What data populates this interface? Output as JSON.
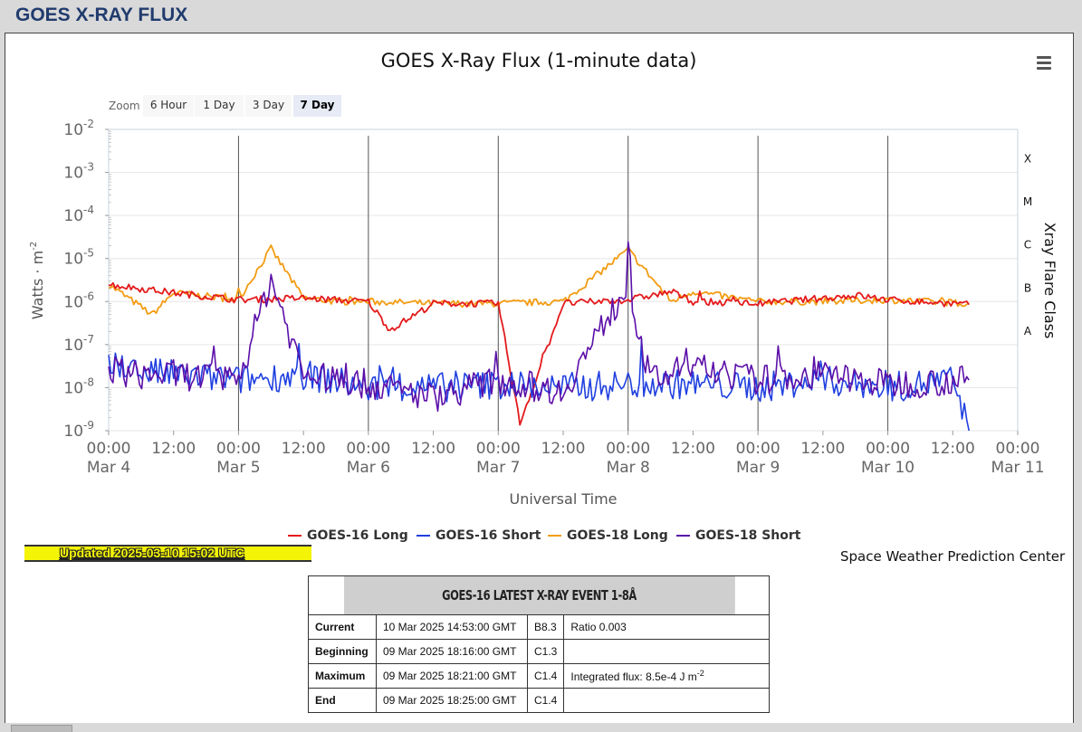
{
  "header": {
    "title": "GOES X-RAY FLUX"
  },
  "chart": {
    "title": "GOES X-Ray Flux (1-minute data)",
    "zoom_label": "Zoom",
    "zoom_buttons": [
      {
        "label": "6 Hour",
        "active": false
      },
      {
        "label": "1 Day",
        "active": false
      },
      {
        "label": "3 Day",
        "active": false
      },
      {
        "label": "7 Day",
        "active": true
      }
    ],
    "ylabel": "Watts · m",
    "ylabel_exp": "-2",
    "right_label": "Xray Flare Class",
    "xlabel": "Universal Time",
    "flare_classes": [
      "X",
      "M",
      "C",
      "B",
      "A"
    ],
    "y_ticks": [
      "-2",
      "-3",
      "-4",
      "-5",
      "-6",
      "-7",
      "-8",
      "-9"
    ],
    "x_ticks": [
      {
        "time": "00:00",
        "date": "Mar 4"
      },
      {
        "time": "12:00",
        "date": ""
      },
      {
        "time": "00:00",
        "date": "Mar 5"
      },
      {
        "time": "12:00",
        "date": ""
      },
      {
        "time": "00:00",
        "date": "Mar 6"
      },
      {
        "time": "12:00",
        "date": ""
      },
      {
        "time": "00:00",
        "date": "Mar 7"
      },
      {
        "time": "12:00",
        "date": ""
      },
      {
        "time": "00:00",
        "date": "Mar 8"
      },
      {
        "time": "12:00",
        "date": ""
      },
      {
        "time": "00:00",
        "date": "Mar 9"
      },
      {
        "time": "12:00",
        "date": ""
      },
      {
        "time": "00:00",
        "date": "Mar 10"
      },
      {
        "time": "12:00",
        "date": ""
      },
      {
        "time": "00:00",
        "date": "Mar 11"
      }
    ]
  },
  "chart_data": {
    "type": "line",
    "title": "GOES X-Ray Flux (1-minute data)",
    "xlabel": "Universal Time",
    "ylabel": "Watts · m-2",
    "yscale": "log",
    "ylim": [
      1e-09,
      0.01
    ],
    "xlim": [
      "2025-03-04 00:00",
      "2025-03-11 00:00"
    ],
    "grid": true,
    "legend_position": "bottom",
    "series": [
      {
        "name": "GOES-16 Long",
        "color": "#e41a1c",
        "x": [
          "2025-03-04 00:00",
          "2025-03-04 12:00",
          "2025-03-05 00:00",
          "2025-03-05 12:00",
          "2025-03-06 00:00",
          "2025-03-06 04:00",
          "2025-03-06 12:00",
          "2025-03-07 00:00",
          "2025-03-07 04:00",
          "2025-03-07 12:00",
          "2025-03-08 00:00",
          "2025-03-08 08:00",
          "2025-03-08 12:00",
          "2025-03-09 00:00",
          "2025-03-09 18:21",
          "2025-03-10 00:00",
          "2025-03-10 15:00"
        ],
        "values": [
          2.5e-06,
          1.6e-06,
          1.1e-06,
          1.2e-06,
          1e-06,
          2.2e-07,
          9e-07,
          9e-07,
          1.5e-09,
          9e-07,
          1.1e-06,
          1.7e-06,
          1e-06,
          9e-07,
          1.4e-06,
          1.1e-06,
          8.5e-07
        ]
      },
      {
        "name": "GOES-16 Short",
        "color": "#1f3fe0",
        "x": [
          "2025-03-04 00:00",
          "2025-03-04 12:00",
          "2025-03-05 00:00",
          "2025-03-05 12:00",
          "2025-03-06 00:00",
          "2025-03-06 12:00",
          "2025-03-07 00:00",
          "2025-03-07 12:00",
          "2025-03-08 00:00",
          "2025-03-08 12:00",
          "2025-03-09 00:00",
          "2025-03-09 12:00",
          "2025-03-10 00:00",
          "2025-03-10 12:00",
          "2025-03-10 15:00"
        ],
        "values": [
          3e-08,
          2e-08,
          1.5e-08,
          2e-08,
          1e-08,
          1e-08,
          1.2e-08,
          1e-08,
          1.2e-08,
          1.2e-08,
          1e-08,
          1.5e-08,
          1e-08,
          1.5e-08,
          1e-09
        ]
      },
      {
        "name": "GOES-18 Long",
        "color": "#f39c12",
        "x": [
          "2025-03-04 00:00",
          "2025-03-04 08:00",
          "2025-03-04 12:00",
          "2025-03-05 00:00",
          "2025-03-05 06:00",
          "2025-03-05 12:00",
          "2025-03-05 18:00",
          "2025-03-06 00:00",
          "2025-03-06 12:00",
          "2025-03-07 00:00",
          "2025-03-07 12:00",
          "2025-03-08 00:00",
          "2025-03-08 08:00",
          "2025-03-08 12:00",
          "2025-03-09 00:00",
          "2025-03-09 12:00",
          "2025-03-10 00:00",
          "2025-03-10 15:00"
        ],
        "values": [
          2.5e-06,
          5e-07,
          1.6e-06,
          1.1e-06,
          1.7e-05,
          1.2e-06,
          1e-06,
          1e-06,
          9e-07,
          9e-07,
          1e-06,
          1.6e-05,
          1e-06,
          1.7e-06,
          1e-06,
          1e-06,
          1.1e-06,
          9e-07
        ]
      },
      {
        "name": "GOES-18 Short",
        "color": "#5b0fa8",
        "x": [
          "2025-03-04 00:00",
          "2025-03-04 04:00",
          "2025-03-04 12:00",
          "2025-03-05 00:00",
          "2025-03-05 06:00",
          "2025-03-05 12:00",
          "2025-03-06 00:00",
          "2025-03-06 12:00",
          "2025-03-07 00:00",
          "2025-03-07 12:00",
          "2025-03-08 00:00",
          "2025-03-08 04:00",
          "2025-03-08 12:00",
          "2025-03-09 00:00",
          "2025-03-09 12:00",
          "2025-03-10 00:00",
          "2025-03-10 15:00"
        ],
        "values": [
          3e-08,
          2e-08,
          2e-08,
          1.5e-08,
          3.5e-06,
          2e-08,
          1.2e-08,
          6e-09,
          1.5e-08,
          8e-09,
          2.5e-06,
          1.5e-08,
          3e-08,
          1.5e-08,
          2e-08,
          1.2e-08,
          1.5e-08
        ]
      }
    ]
  },
  "legend": [
    {
      "label": "GOES-16 Long",
      "color": "#e41a1c"
    },
    {
      "label": "GOES-16 Short",
      "color": "#1f3fe0"
    },
    {
      "label": "GOES-18 Long",
      "color": "#f39c12"
    },
    {
      "label": "GOES-18 Short",
      "color": "#5b0fa8"
    }
  ],
  "updated": "Updated 2025-03-10 15:02 UTC",
  "credit": "Space Weather Prediction Center",
  "event_table": {
    "title": "GOES-16 LATEST X-RAY EVENT 1-8Å",
    "rows": [
      {
        "label": "Current",
        "date": "10 Mar 2025 14:53:00 GMT",
        "class": "B8.3",
        "extra": "Ratio 0.003"
      },
      {
        "label": "Beginning",
        "date": "09 Mar 2025 18:16:00 GMT",
        "class": "C1.3",
        "extra": ""
      },
      {
        "label": "Maximum",
        "date": "09 Mar 2025 18:21:00 GMT",
        "class": "C1.4",
        "extra": "Integrated flux: 8.5e-4 J m",
        "extra_sup": "-2"
      },
      {
        "label": "End",
        "date": "09 Mar 2025 18:25:00 GMT",
        "class": "C1.4",
        "extra": ""
      }
    ]
  }
}
